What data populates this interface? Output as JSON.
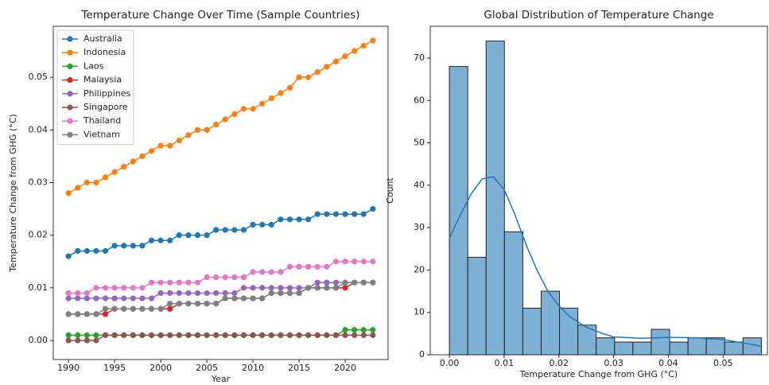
{
  "chart_data": [
    {
      "type": "line",
      "title": "Temperature Change Over Time (Sample Countries)",
      "x_label": "Year",
      "y_label": "Temperature Change from GHG (°C)",
      "x": [
        1990,
        1991,
        1992,
        1993,
        1994,
        1995,
        1996,
        1997,
        1998,
        1999,
        2000,
        2001,
        2002,
        2003,
        2004,
        2005,
        2006,
        2007,
        2008,
        2009,
        2010,
        2011,
        2012,
        2013,
        2014,
        2015,
        2016,
        2017,
        2018,
        2019,
        2020,
        2021,
        2022,
        2023
      ],
      "series": [
        {
          "name": "Australia",
          "color": "#1f77b4",
          "values": [
            0.016,
            0.017,
            0.017,
            0.017,
            0.017,
            0.018,
            0.018,
            0.018,
            0.018,
            0.019,
            0.019,
            0.019,
            0.02,
            0.02,
            0.02,
            0.02,
            0.021,
            0.021,
            0.021,
            0.021,
            0.022,
            0.022,
            0.022,
            0.023,
            0.023,
            0.023,
            0.023,
            0.024,
            0.024,
            0.024,
            0.024,
            0.024,
            0.024,
            0.025
          ]
        },
        {
          "name": "Indonesia",
          "color": "#ff7f0e",
          "values": [
            0.028,
            0.029,
            0.03,
            0.03,
            0.031,
            0.032,
            0.033,
            0.034,
            0.035,
            0.036,
            0.037,
            0.037,
            0.038,
            0.039,
            0.04,
            0.04,
            0.041,
            0.042,
            0.043,
            0.044,
            0.044,
            0.045,
            0.046,
            0.047,
            0.048,
            0.05,
            0.05,
            0.051,
            0.052,
            0.053,
            0.054,
            0.055,
            0.056,
            0.057
          ]
        },
        {
          "name": "Laos",
          "color": "#2ca02c",
          "values": [
            0.001,
            0.001,
            0.001,
            0.001,
            0.001,
            0.001,
            0.001,
            0.001,
            0.001,
            0.001,
            0.001,
            0.001,
            0.001,
            0.001,
            0.001,
            0.001,
            0.001,
            0.001,
            0.001,
            0.001,
            0.001,
            0.001,
            0.001,
            0.001,
            0.001,
            0.001,
            0.001,
            0.001,
            0.001,
            0.001,
            0.002,
            0.002,
            0.002,
            0.002
          ]
        },
        {
          "name": "Malaysia",
          "color": "#d62728",
          "values": [
            0.005,
            0.005,
            0.005,
            0.005,
            0.005,
            0.006,
            0.006,
            0.006,
            0.006,
            0.006,
            0.006,
            0.006,
            0.007,
            0.007,
            0.007,
            0.007,
            0.007,
            0.008,
            0.008,
            0.008,
            0.008,
            0.008,
            0.009,
            0.009,
            0.009,
            0.009,
            0.01,
            0.01,
            0.01,
            0.01,
            0.01,
            0.011,
            0.011,
            0.011
          ]
        },
        {
          "name": "Philippines",
          "color": "#9467bd",
          "values": [
            0.008,
            0.008,
            0.008,
            0.008,
            0.008,
            0.008,
            0.008,
            0.008,
            0.008,
            0.008,
            0.009,
            0.009,
            0.009,
            0.009,
            0.009,
            0.009,
            0.009,
            0.009,
            0.009,
            0.01,
            0.01,
            0.01,
            0.01,
            0.01,
            0.01,
            0.01,
            0.01,
            0.011,
            0.011,
            0.011,
            0.011,
            0.011,
            0.011,
            0.011
          ]
        },
        {
          "name": "Singapore",
          "color": "#8c564b",
          "values": [
            0.0,
            0.0,
            0.0,
            0.0,
            0.001,
            0.001,
            0.001,
            0.001,
            0.001,
            0.001,
            0.001,
            0.001,
            0.001,
            0.001,
            0.001,
            0.001,
            0.001,
            0.001,
            0.001,
            0.001,
            0.001,
            0.001,
            0.001,
            0.001,
            0.001,
            0.001,
            0.001,
            0.001,
            0.001,
            0.001,
            0.001,
            0.001,
            0.001,
            0.001
          ]
        },
        {
          "name": "Thailand",
          "color": "#e377c2",
          "values": [
            0.009,
            0.009,
            0.009,
            0.01,
            0.01,
            0.01,
            0.01,
            0.01,
            0.01,
            0.011,
            0.011,
            0.011,
            0.011,
            0.011,
            0.011,
            0.012,
            0.012,
            0.012,
            0.012,
            0.012,
            0.013,
            0.013,
            0.013,
            0.013,
            0.014,
            0.014,
            0.014,
            0.014,
            0.014,
            0.015,
            0.015,
            0.015,
            0.015,
            0.015
          ]
        },
        {
          "name": "Vietnam",
          "color": "#7f7f7f",
          "values": [
            0.005,
            0.005,
            0.005,
            0.005,
            0.006,
            0.006,
            0.006,
            0.006,
            0.006,
            0.006,
            0.006,
            0.007,
            0.007,
            0.007,
            0.007,
            0.007,
            0.007,
            0.008,
            0.008,
            0.008,
            0.008,
            0.008,
            0.009,
            0.009,
            0.009,
            0.009,
            0.01,
            0.01,
            0.01,
            0.01,
            0.011,
            0.011,
            0.011,
            0.011
          ]
        }
      ],
      "xlim": [
        1988.35,
        2024.65
      ],
      "xticks": [
        1990,
        1995,
        2000,
        2005,
        2010,
        2015,
        2020
      ],
      "ylim": [
        -0.00363,
        0.0597
      ],
      "yticks": [
        {
          "value": 0,
          "label": "0.00"
        },
        {
          "value": 0.01,
          "label": "0.01"
        },
        {
          "value": 0.02,
          "label": "0.02"
        },
        {
          "value": 0.03,
          "label": "0.03"
        },
        {
          "value": 0.04,
          "label": "0.04"
        },
        {
          "value": 0.05,
          "label": "0.05"
        }
      ],
      "legend": "upper left"
    },
    {
      "type": "histogram",
      "title": "Global Distribution of Temperature Change",
      "x_label": "Temperature Change from GHG (°C)",
      "y_label": "Count",
      "color": "#7eb0d5",
      "line_color": "#1f77b4",
      "bins": [
        0,
        0.003353,
        0.006706,
        0.010059,
        0.013412,
        0.016765,
        0.020118,
        0.023471,
        0.026824,
        0.030176,
        0.033529,
        0.036882,
        0.040235,
        0.043588,
        0.046941,
        0.050294,
        0.053647,
        0.057
      ],
      "values": [
        68,
        23,
        74,
        29,
        11,
        15,
        11,
        7,
        4,
        3,
        3,
        6,
        3,
        4,
        4,
        3,
        4
      ],
      "kde": {
        "x": [
          0,
          0.002,
          0.004,
          0.006,
          0.008,
          0.01,
          0.012,
          0.014,
          0.016,
          0.018,
          0.02,
          0.022,
          0.025,
          0.028,
          0.03,
          0.035,
          0.04,
          0.045,
          0.05,
          0.055,
          0.057
        ],
        "y": [
          27.5,
          33,
          38,
          41.5,
          42,
          39,
          33,
          26,
          20,
          15,
          11.5,
          9,
          6.5,
          5,
          4.2,
          3.9,
          4.1,
          4,
          3.6,
          2.5,
          2
        ]
      },
      "xlim": [
        -0.0035,
        0.0581
      ],
      "xticks": [
        {
          "value": 0,
          "label": "0.00"
        },
        {
          "value": 0.01,
          "label": "0.01"
        },
        {
          "value": 0.02,
          "label": "0.02"
        },
        {
          "value": 0.03,
          "label": "0.03"
        },
        {
          "value": 0.04,
          "label": "0.04"
        },
        {
          "value": 0.05,
          "label": "0.05"
        }
      ],
      "ylim": [
        0,
        77.5
      ],
      "yticks": [
        0,
        10,
        20,
        30,
        40,
        50,
        60,
        70
      ]
    }
  ]
}
